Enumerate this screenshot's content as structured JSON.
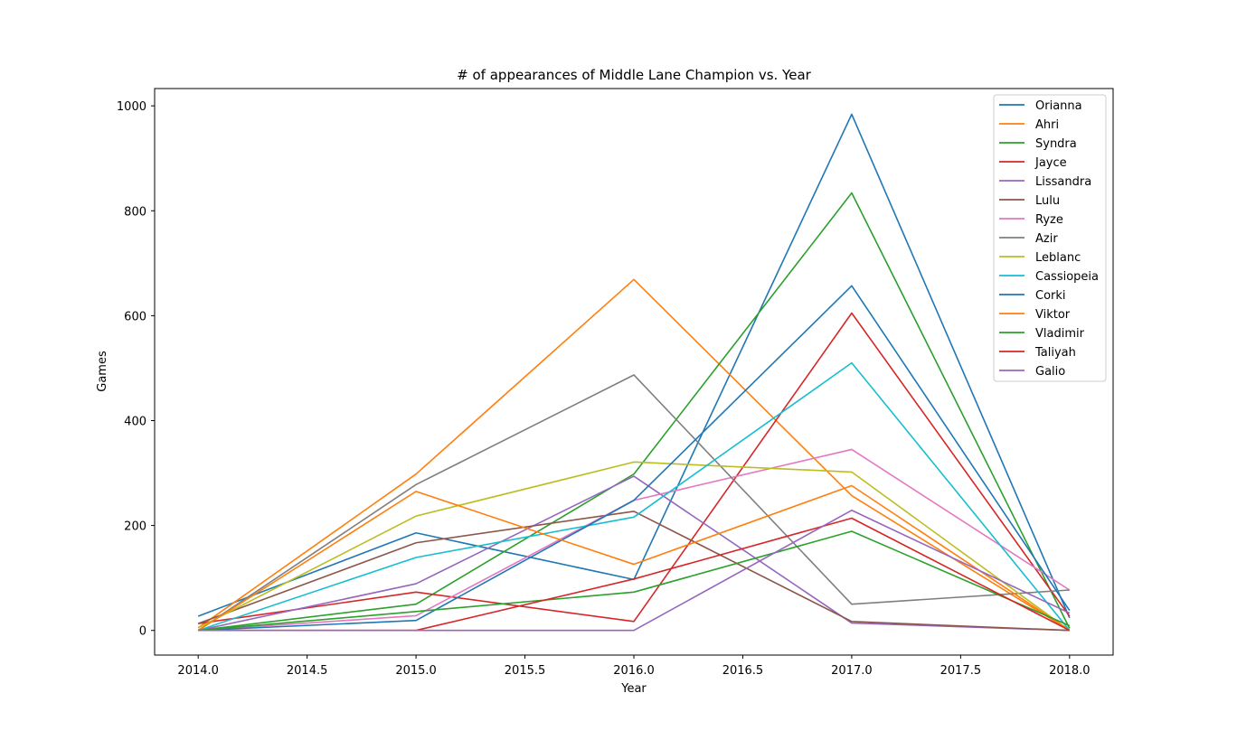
{
  "chart_data": {
    "type": "line",
    "title": "# of appearances of Middle Lane Champion vs. Year",
    "xlabel": "Year",
    "ylabel": "Games",
    "xlim": [
      2013.8,
      2018.2
    ],
    "ylim": [
      -47,
      1033
    ],
    "xticks": [
      "2014.0",
      "2014.5",
      "2015.0",
      "2015.5",
      "2016.0",
      "2016.5",
      "2017.0",
      "2017.5",
      "2018.0"
    ],
    "xtick_values": [
      2014.0,
      2014.5,
      2015.0,
      2015.5,
      2016.0,
      2016.5,
      2017.0,
      2017.5,
      2018.0
    ],
    "yticks": [
      "0",
      "200",
      "400",
      "600",
      "800",
      "1000"
    ],
    "ytick_values": [
      0,
      200,
      400,
      600,
      800,
      1000
    ],
    "grid": false,
    "legend_position": "top-right",
    "x": [
      2014,
      2015,
      2016,
      2017,
      2018
    ],
    "series": [
      {
        "name": "Orianna",
        "color": "#1f77b4",
        "values": [
          27,
          186,
          97,
          984,
          24
        ]
      },
      {
        "name": "Ahri",
        "color": "#ff7f0e",
        "values": [
          5,
          298,
          669,
          257,
          0
        ]
      },
      {
        "name": "Syndra",
        "color": "#2ca02c",
        "values": [
          0,
          50,
          298,
          834,
          4
        ]
      },
      {
        "name": "Jayce",
        "color": "#d62728",
        "values": [
          13,
          73,
          17,
          605,
          27
        ]
      },
      {
        "name": "Lissandra",
        "color": "#9467bd",
        "values": [
          0,
          89,
          294,
          14,
          0
        ]
      },
      {
        "name": "Lulu",
        "color": "#8c564b",
        "values": [
          13,
          167,
          227,
          17,
          0
        ]
      },
      {
        "name": "Ryze",
        "color": "#e377c2",
        "values": [
          0,
          28,
          248,
          345,
          77
        ]
      },
      {
        "name": "Azir",
        "color": "#7f7f7f",
        "values": [
          0,
          278,
          487,
          50,
          77
        ]
      },
      {
        "name": "Leblanc",
        "color": "#bcbd22",
        "values": [
          5,
          218,
          321,
          302,
          0
        ]
      },
      {
        "name": "Cassiopeia",
        "color": "#17becf",
        "values": [
          0,
          139,
          216,
          510,
          0
        ]
      },
      {
        "name": "Corki",
        "color": "#1f77b4",
        "values": [
          0,
          19,
          248,
          657,
          38
        ]
      },
      {
        "name": "Viktor",
        "color": "#ff7f0e",
        "values": [
          0,
          265,
          126,
          276,
          0
        ]
      },
      {
        "name": "Vladimir",
        "color": "#2ca02c",
        "values": [
          0,
          36,
          73,
          189,
          9
        ]
      },
      {
        "name": "Taliyah",
        "color": "#d62728",
        "values": [
          0,
          0,
          98,
          214,
          0
        ]
      },
      {
        "name": "Galio",
        "color": "#9467bd",
        "values": [
          0,
          0,
          0,
          229,
          33
        ]
      }
    ]
  }
}
